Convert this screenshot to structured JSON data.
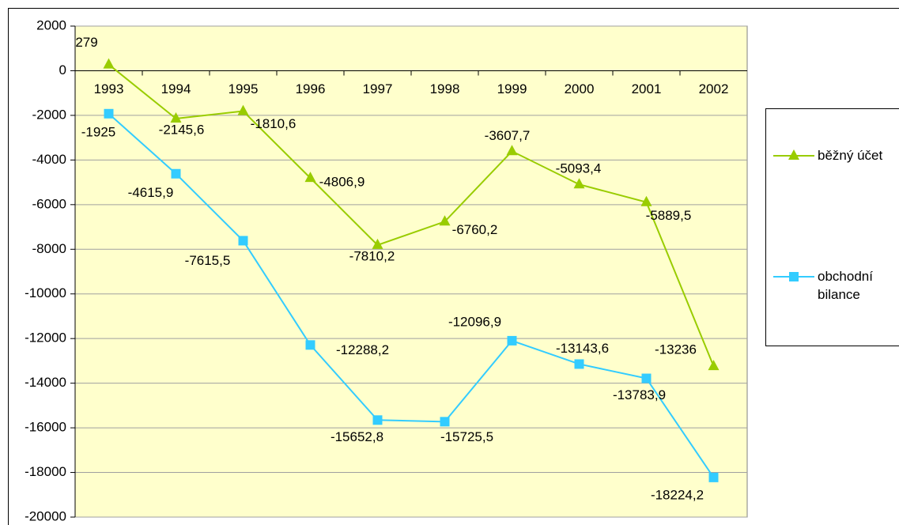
{
  "chart_data": {
    "type": "line",
    "categories": [
      "1993",
      "1994",
      "1995",
      "1996",
      "1997",
      "1998",
      "1999",
      "2000",
      "2001",
      "2002"
    ],
    "series": [
      {
        "name": "běžný účet",
        "color": "#99cc00",
        "marker": "triangle",
        "values": [
          279,
          -2145.6,
          -1810.6,
          -4806.9,
          -7810.2,
          -6760.2,
          -3607.7,
          -5093.4,
          -5889.5,
          -13236
        ],
        "value_labels": [
          "279",
          "-2145,6",
          "-1810,6",
          "-4806,9",
          "-7810,2",
          "-6760,2",
          "-3607,7",
          "-5093,4",
          "-5889,5",
          "-13236"
        ]
      },
      {
        "name": "obchodní bilance",
        "color": "#33ccff",
        "marker": "square",
        "values": [
          -1925,
          -4615.9,
          -7615.5,
          -12288.2,
          -15652.8,
          -15725.5,
          -12096.9,
          -13143.6,
          -13783.9,
          -18224.2
        ],
        "value_labels": [
          "-1925",
          "-4615,9",
          "-7615,5",
          "-12288,2",
          "-15652,8",
          "-15725,5",
          "-12096,9",
          "-13143,6",
          "-13783,9",
          "-18224,2"
        ]
      }
    ],
    "ylim": [
      -20000,
      2000
    ],
    "yticks": [
      -20000,
      -18000,
      -16000,
      -14000,
      -12000,
      -10000,
      -8000,
      -6000,
      -4000,
      -2000,
      0,
      2000
    ],
    "grid": true,
    "legend": "right"
  }
}
